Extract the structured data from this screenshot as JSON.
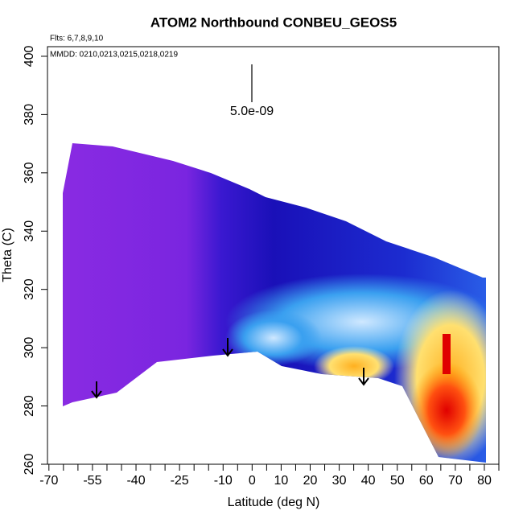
{
  "chart_data": {
    "type": "curtain",
    "title": "ATOM2 Northbound CONBEU_GEOS5",
    "notes": [
      "Flts: 6,7,8,9,10",
      "MMDD: 0210,0213,0215,0218,0219"
    ],
    "scale_label": "5.0e-09",
    "xlabel": "Latitude (deg N)",
    "ylabel": "Theta (C)",
    "xlim": [
      -70.5,
      85
    ],
    "ylim": [
      260,
      403.3
    ],
    "xticks": [
      -70,
      -55,
      -40,
      -25,
      -10,
      0,
      10,
      20,
      30,
      40,
      50,
      60,
      70,
      80
    ],
    "xminorticks": [
      -65,
      -60,
      -50,
      -45,
      -35,
      -30,
      -20,
      -15,
      -5,
      5,
      15,
      25,
      35,
      45,
      55,
      65,
      75,
      85
    ],
    "yticks": [
      260,
      280,
      300,
      320,
      340,
      360,
      380,
      400
    ]
  }
}
